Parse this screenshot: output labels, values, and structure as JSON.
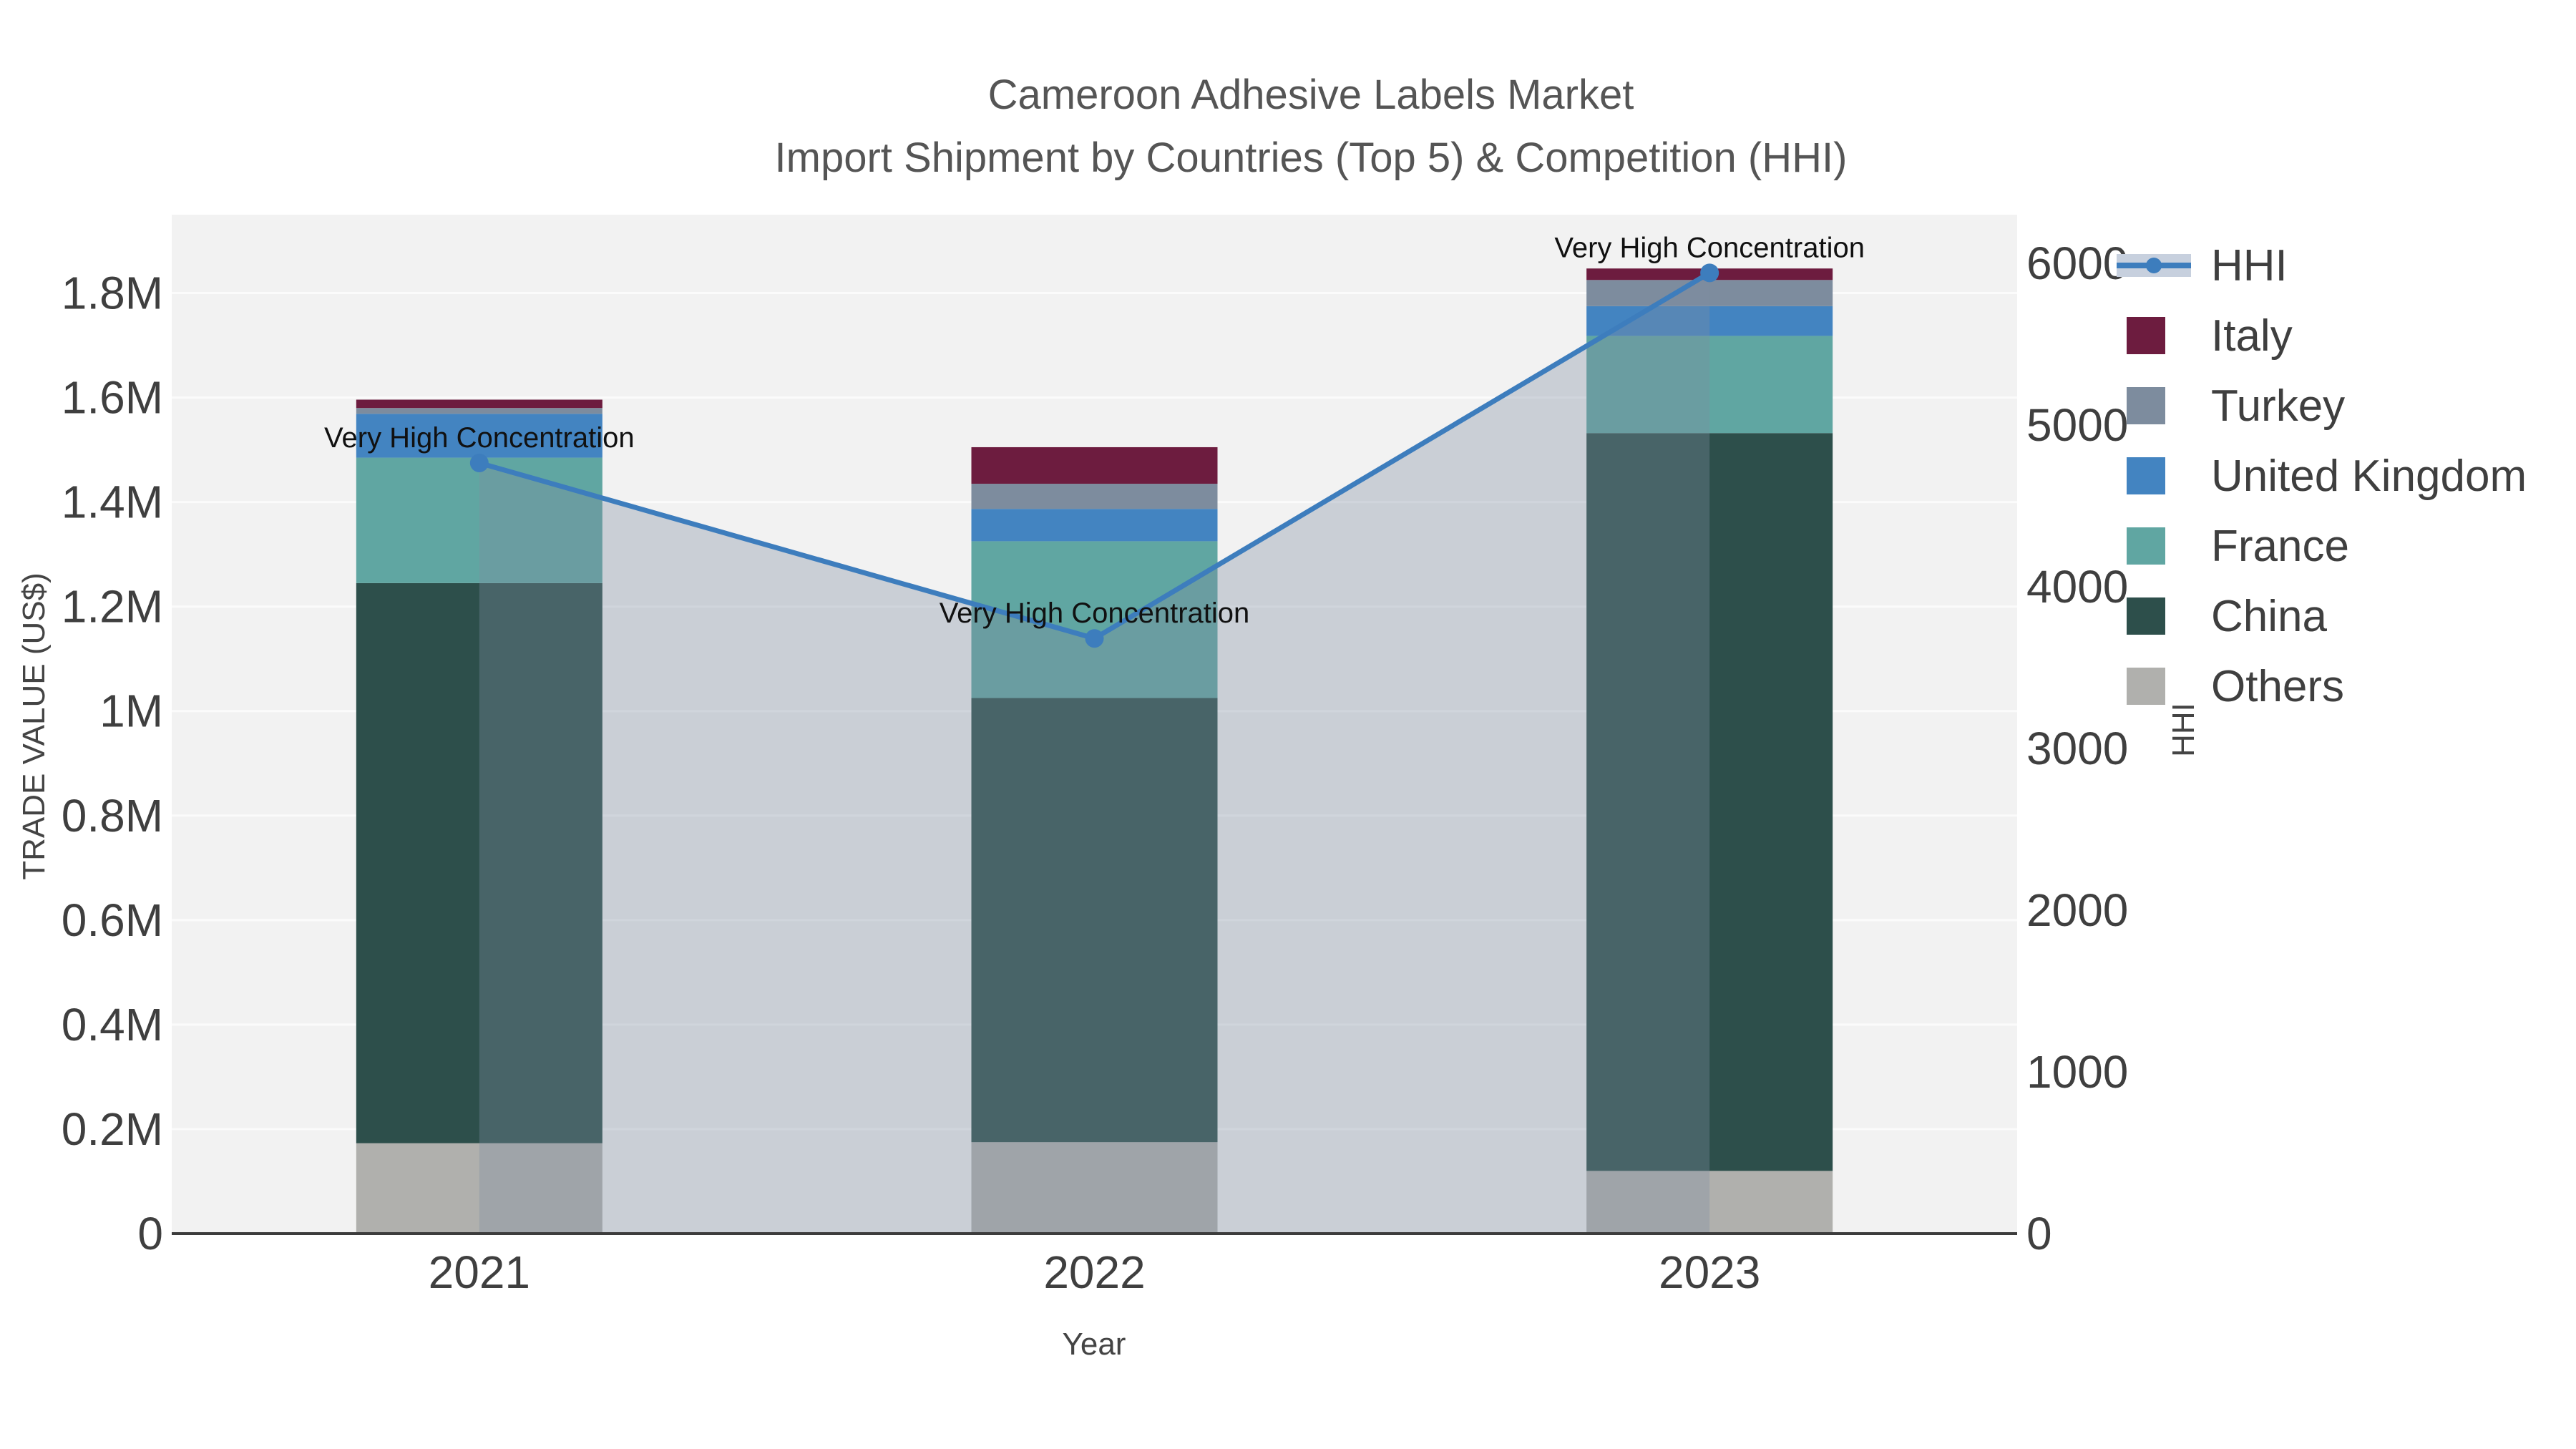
{
  "title": {
    "line1": "Cameroon Adhesive Labels Market",
    "line2": "Import Shipment by Countries (Top 5) & Competition (HHI)"
  },
  "axes": {
    "x_title": "Year",
    "y_left_title": "TRADE VALUE (US$)",
    "y_right_title": "HHI",
    "x_ticks": [
      "2021",
      "2022",
      "2023"
    ],
    "y_left_ticks": [
      {
        "label": "0",
        "value": 0
      },
      {
        "label": "0.2M",
        "value": 200000
      },
      {
        "label": "0.4M",
        "value": 400000
      },
      {
        "label": "0.6M",
        "value": 600000
      },
      {
        "label": "0.8M",
        "value": 800000
      },
      {
        "label": "1M",
        "value": 1000000
      },
      {
        "label": "1.2M",
        "value": 1200000
      },
      {
        "label": "1.4M",
        "value": 1400000
      },
      {
        "label": "1.6M",
        "value": 1600000
      },
      {
        "label": "1.8M",
        "value": 1800000
      }
    ],
    "y_right_ticks": [
      {
        "label": "0",
        "value": 0
      },
      {
        "label": "1000",
        "value": 1000
      },
      {
        "label": "2000",
        "value": 2000
      },
      {
        "label": "3000",
        "value": 3000
      },
      {
        "label": "4000",
        "value": 4000
      },
      {
        "label": "5000",
        "value": 5000
      },
      {
        "label": "6000",
        "value": 6000
      }
    ]
  },
  "legend": [
    {
      "label": "HHI",
      "type": "line",
      "color": "#3d7dbd"
    },
    {
      "label": "Italy",
      "type": "box",
      "color": "#6d1c3f"
    },
    {
      "label": "Turkey",
      "type": "box",
      "color": "#7d8c9e"
    },
    {
      "label": "United Kingdom",
      "type": "box",
      "color": "#4384c1"
    },
    {
      "label": "France",
      "type": "box",
      "color": "#60a6a2"
    },
    {
      "label": "China",
      "type": "box",
      "color": "#2d4f4b"
    },
    {
      "label": "Others",
      "type": "box",
      "color": "#b0b0ad"
    }
  ],
  "chart_data": {
    "type": "bar",
    "subtype": "stacked-bar-with-line",
    "title": "Cameroon Adhesive Labels Market — Import Shipment by Countries (Top 5) & Competition (HHI)",
    "categories": [
      "2021",
      "2022",
      "2023"
    ],
    "xlabel": "Year",
    "ylabel_left": "TRADE VALUE (US$)",
    "ylabel_right": "HHI",
    "y_left_range": [
      0,
      1950000
    ],
    "y_right_range": [
      0,
      6300
    ],
    "grid": "horizontal-white",
    "legend_position": "right",
    "series": [
      {
        "name": "Others",
        "color": "#b0b0ad",
        "values": [
          173000,
          175000,
          120000
        ]
      },
      {
        "name": "China",
        "color": "#2d4f4b",
        "values": [
          1072000,
          850000,
          1412000
        ]
      },
      {
        "name": "France",
        "color": "#60a6a2",
        "values": [
          240000,
          300000,
          186000
        ]
      },
      {
        "name": "United Kingdom",
        "color": "#4384c1",
        "values": [
          84000,
          62000,
          57000
        ]
      },
      {
        "name": "Turkey",
        "color": "#7d8c9e",
        "values": [
          11000,
          48000,
          50000
        ]
      },
      {
        "name": "Italy",
        "color": "#6d1c3f",
        "values": [
          16000,
          70000,
          22000
        ]
      }
    ],
    "bar_totals": [
      1596000,
      1505000,
      1847000
    ],
    "line": {
      "name": "HHI",
      "color": "#3d7dbd",
      "area_fill": "rgba(125,140,162,0.34)",
      "values": [
        4765,
        3680,
        5940
      ]
    },
    "annotations": [
      {
        "text": "Very High Concentration",
        "category": "2021"
      },
      {
        "text": "Very High Concentration",
        "category": "2022"
      },
      {
        "text": "Very High Concentration",
        "category": "2023"
      }
    ]
  },
  "colors": {
    "plot_background": "#f2f2f2",
    "gridline": "#fbfbfb",
    "axis_line": "#3c3c3c",
    "tick_text": "#3f3f3f",
    "title_text": "#555555",
    "hhi_legend_band": "#c7d0de"
  }
}
